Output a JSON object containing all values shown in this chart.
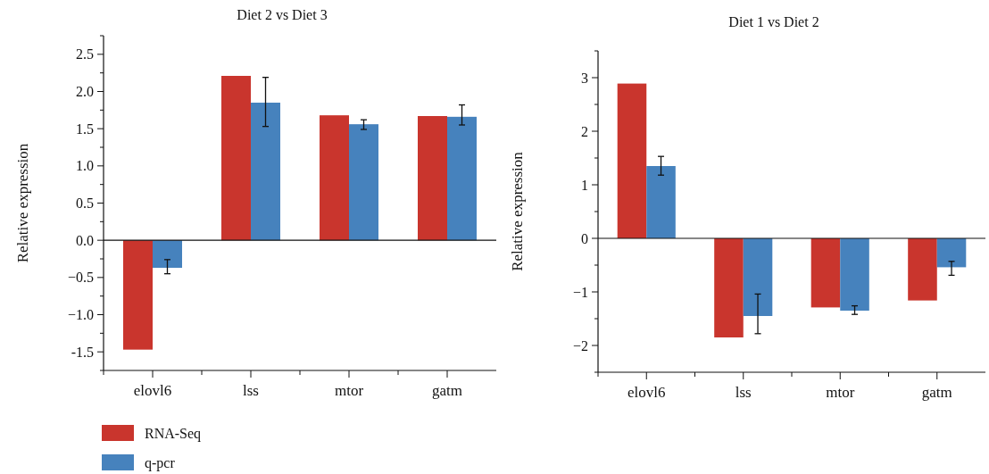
{
  "chart_data": [
    {
      "type": "bar",
      "title": "Diet 2 vs Diet 3",
      "ylabel": "Relative expression",
      "categories": [
        "elovl6",
        "lss",
        "mtor",
        "gatm"
      ],
      "series": [
        {
          "name": "RNA-Seq",
          "color": "#c9352d",
          "values": [
            -1.47,
            2.21,
            1.68,
            1.67
          ]
        },
        {
          "name": "q-pcr",
          "color": "#4682bd",
          "values": [
            -0.37,
            1.85,
            1.56,
            1.66
          ],
          "errors": [
            [
              -0.45,
              -0.26
            ],
            [
              1.53,
              2.19
            ],
            [
              1.49,
              1.62
            ],
            [
              1.55,
              1.82
            ]
          ]
        }
      ],
      "ylim": [
        -1.75,
        2.75
      ],
      "yticks": [
        {
          "value": -1.75,
          "label": null
        },
        -1.5,
        {
          "value": -1.25,
          "label": null
        },
        {
          "value": -1.0,
          "label": "−1.0"
        },
        {
          "value": -0.75,
          "label": null
        },
        {
          "value": -0.5,
          "label": "−0.5"
        },
        {
          "value": -0.25,
          "label": null
        },
        {
          "value": 0,
          "label": "0.0"
        },
        {
          "value": 0.25,
          "label": null
        },
        {
          "value": 0.5,
          "label": "0.5"
        },
        {
          "value": 0.75,
          "label": null
        },
        {
          "value": 1,
          "label": "1.0"
        },
        {
          "value": 1.25,
          "label": null
        },
        {
          "value": 1.5,
          "label": "1.5"
        },
        {
          "value": 1.75,
          "label": null
        },
        {
          "value": 2,
          "label": "2.0"
        },
        {
          "value": 2.25,
          "label": null
        },
        {
          "value": 2.5,
          "label": "2.5"
        },
        {
          "value": 2.75,
          "label": null
        }
      ],
      "legend": "bottom left",
      "ref_lines": [
        {
          "axis": "y",
          "value": 0
        }
      ]
    },
    {
      "type": "bar",
      "title": "Diet 1 vs Diet 2",
      "ylabel": "Relative expression",
      "categories": [
        "elovl6",
        "lss",
        "mtor",
        "gatm"
      ],
      "series": [
        {
          "color": "#c9352d",
          "values": [
            2.89,
            -1.85,
            -1.29,
            -1.16
          ]
        },
        {
          "color": "#4682bd",
          "values": [
            1.35,
            -1.45,
            -1.35,
            -0.54
          ],
          "errors": [
            [
              1.18,
              1.53
            ],
            [
              -1.78,
              -1.04
            ],
            [
              -1.42,
              -1.26
            ],
            [
              -0.69,
              -0.43
            ]
          ]
        }
      ],
      "ylim": [
        -2.5,
        3.5
      ],
      "yticks": [
        {
          "value": -2.5,
          "label": null
        },
        {
          "value": -2,
          "label": "−2"
        },
        {
          "value": -1.5,
          "label": null
        },
        {
          "value": -1,
          "label": "−1"
        },
        {
          "value": -0.5,
          "label": null
        },
        0,
        {
          "value": 0.5,
          "label": null
        },
        1,
        {
          "value": 1.5,
          "label": null
        },
        2,
        {
          "value": 2.5,
          "label": null
        },
        3,
        {
          "value": 3.5,
          "label": null
        }
      ],
      "legend": false,
      "ref_lines": [
        {
          "axis": "y",
          "value": 0
        }
      ]
    }
  ]
}
